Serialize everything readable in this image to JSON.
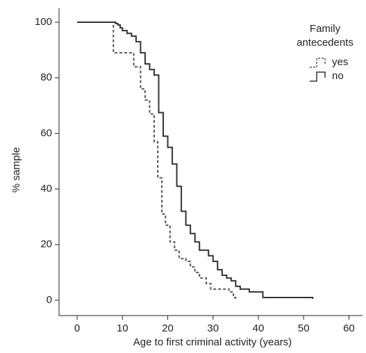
{
  "chart_data": {
    "type": "step",
    "xlabel": "Age to first criminal activity (years)",
    "ylabel": "% sample",
    "legend_title": [
      "Family",
      "antecedents"
    ],
    "xlim": [
      -4,
      63
    ],
    "ylim": [
      -5.5,
      105
    ],
    "xticks": [
      0,
      10,
      20,
      30,
      40,
      50,
      60
    ],
    "yticks": [
      0,
      20,
      40,
      60,
      80,
      100
    ],
    "series": [
      {
        "name": "yes",
        "color": "#555555",
        "dashed": true,
        "x": [
          0,
          8,
          12.5,
          14,
          15,
          16,
          17,
          17.8,
          18.7,
          19.5,
          20.5,
          21.5,
          22.5,
          24,
          25,
          26,
          27,
          28.5,
          29.5,
          33.5,
          34.5,
          35
        ],
        "values": [
          100,
          89,
          84,
          76,
          72,
          67,
          57,
          44,
          31,
          27,
          21,
          18,
          15,
          14,
          12,
          10,
          8,
          6,
          4,
          3,
          1,
          0.5
        ]
      },
      {
        "name": "no",
        "color": "#333333",
        "dashed": false,
        "x": [
          0,
          8.5,
          9,
          9.5,
          10,
          11,
          12,
          13,
          14,
          15,
          16,
          17,
          18,
          19,
          20,
          21,
          22,
          23,
          24,
          25,
          26,
          27,
          29,
          30,
          31,
          32,
          33,
          34,
          35,
          36,
          38,
          41,
          52
        ],
        "values": [
          100,
          99.5,
          99,
          98,
          97,
          96,
          95,
          93,
          89,
          85,
          83,
          81,
          67.5,
          59,
          55,
          49,
          41,
          32,
          27,
          24,
          21,
          18,
          16,
          14,
          11,
          9,
          8,
          7,
          5,
          4,
          3,
          1,
          0.5
        ]
      }
    ]
  }
}
